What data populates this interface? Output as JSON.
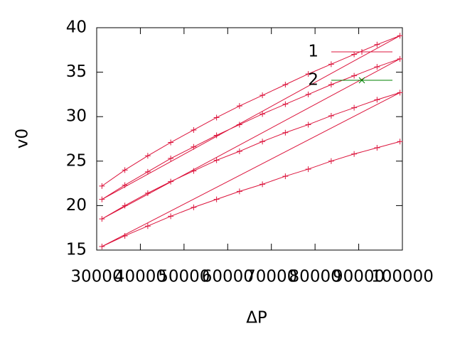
{
  "chart_data": {
    "type": "line",
    "xlabel": "ΔP",
    "ylabel": "v0",
    "xlim": [
      30000,
      100000
    ],
    "xticks": [
      30000,
      40000,
      50000,
      60000,
      70000,
      80000,
      90000,
      100000
    ],
    "ylim": [
      15,
      40
    ],
    "yticks": [
      15,
      20,
      25,
      30,
      35,
      40
    ],
    "legend": "top-right",
    "series": [
      {
        "name": "1",
        "color": "#dc143c",
        "marker": "plus",
        "x": [
          31200,
          36450,
          41700,
          46950,
          52200,
          57450,
          62700,
          67950,
          73200,
          78450,
          83700,
          88950,
          94200,
          99450,
          31200,
          36450,
          41700,
          46950,
          52200,
          57450,
          62700,
          67950,
          73200,
          78450,
          83700,
          88950,
          94200,
          99450,
          31200,
          36450,
          41700,
          46950,
          52200,
          57450,
          62700,
          67950,
          73200,
          78450,
          83700,
          88950,
          94200,
          99450,
          31200,
          36450,
          41700,
          46950,
          52200,
          57450,
          62700,
          67950,
          73200,
          78450,
          83700,
          88950,
          94200,
          99450
        ],
        "values": [
          22.2,
          24.0,
          25.6,
          27.1,
          28.5,
          29.9,
          31.2,
          32.4,
          33.6,
          34.8,
          35.9,
          37.0,
          38.1,
          39.1,
          20.7,
          22.3,
          23.8,
          25.3,
          26.6,
          27.9,
          29.1,
          30.3,
          31.4,
          32.5,
          33.6,
          34.6,
          35.6,
          36.5,
          18.5,
          20.0,
          21.4,
          22.7,
          23.9,
          25.1,
          26.1,
          27.2,
          28.2,
          29.1,
          30.1,
          31.0,
          31.9,
          32.7,
          15.4,
          16.6,
          17.7,
          18.8,
          19.8,
          20.7,
          21.6,
          22.4,
          23.3,
          24.1,
          25.0,
          25.8,
          26.5,
          27.2
        ]
      },
      {
        "name": "2",
        "color": "#008000",
        "marker": "cross",
        "x": [],
        "values": []
      }
    ]
  }
}
